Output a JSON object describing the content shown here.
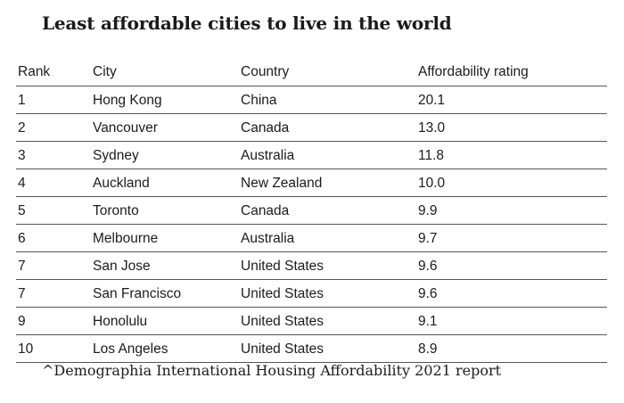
{
  "title": "Least affordable cities to live in the world",
  "source": "^Demographia International Housing Affordability 2021 report",
  "chart_data": {
    "type": "table",
    "title": "Least affordable cities to live in the world",
    "columns": [
      "Rank",
      "City",
      "Country",
      "Affordability rating"
    ],
    "rows": [
      {
        "rank": "1",
        "city": "Hong Kong",
        "country": "China",
        "rating": "20.1"
      },
      {
        "rank": "2",
        "city": "Vancouver",
        "country": "Canada",
        "rating": "13.0"
      },
      {
        "rank": "3",
        "city": "Sydney",
        "country": "Australia",
        "rating": "11.8"
      },
      {
        "rank": "4",
        "city": "Auckland",
        "country": "New Zealand",
        "rating": "10.0"
      },
      {
        "rank": "5",
        "city": "Toronto",
        "country": "Canada",
        "rating": "9.9"
      },
      {
        "rank": "6",
        "city": "Melbourne",
        "country": "Australia",
        "rating": "9.7"
      },
      {
        "rank": "7",
        "city": "San Jose",
        "country": "United States",
        "rating": "9.6"
      },
      {
        "rank": "7",
        "city": "San Francisco",
        "country": "United States",
        "rating": "9.6"
      },
      {
        "rank": "9",
        "city": "Honolulu",
        "country": "United States",
        "rating": "9.1"
      },
      {
        "rank": "10",
        "city": "Los Angeles",
        "country": "United States",
        "rating": "8.9"
      }
    ]
  }
}
